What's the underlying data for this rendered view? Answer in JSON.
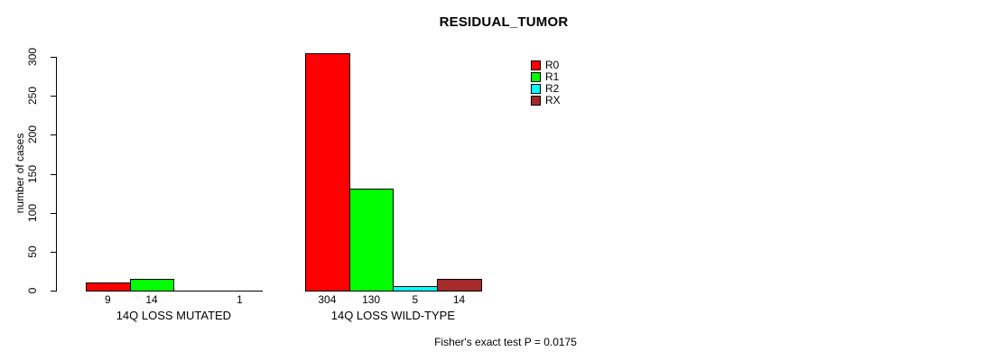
{
  "title": "RESIDUAL_TUMOR",
  "chart_data": {
    "type": "bar",
    "title": "RESIDUAL_TUMOR",
    "xlabel": "",
    "ylabel": "number of cases",
    "ylim": [
      0,
      300
    ],
    "yticks": [
      0,
      50,
      100,
      150,
      200,
      250,
      300
    ],
    "grid": false,
    "categories": [
      "14Q LOSS MUTATED",
      "14Q LOSS WILD-TYPE"
    ],
    "series": [
      {
        "name": "R0",
        "color": "#ff0000",
        "values": [
          9,
          304
        ]
      },
      {
        "name": "R1",
        "color": "#00ff00",
        "values": [
          14,
          130
        ]
      },
      {
        "name": "R2",
        "color": "#00ffff",
        "values": [
          0,
          5
        ]
      },
      {
        "name": "RX",
        "color": "#a52a2a",
        "values": [
          1,
          14
        ]
      }
    ],
    "bar_value_labels": [
      [
        "9",
        "14",
        "",
        "1"
      ],
      [
        "304",
        "130",
        "5",
        "14"
      ]
    ],
    "legend_position": "top-right",
    "legend_entries": [
      "R0",
      "R1",
      "R2",
      "RX"
    ],
    "annotation": "Fisher's exact test P = 0.0175"
  }
}
